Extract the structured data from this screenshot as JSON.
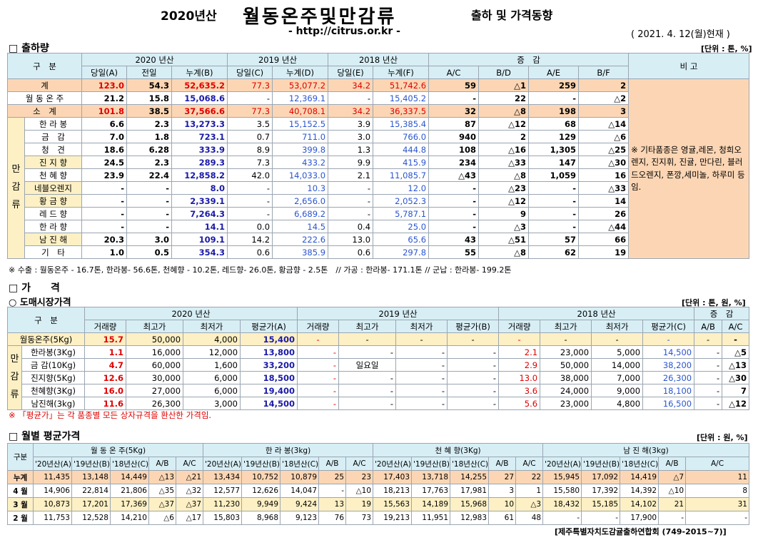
{
  "header": {
    "year": "2020년산",
    "title": "월동온주및만감류",
    "subtitle": "출하 및 가격동향",
    "url": "- http://citrus.or.kr -",
    "date": "( 2021. 4. 12(월)현재 )"
  },
  "sec1": {
    "title": "□ 출하량",
    "unit": "[단위 : 톤, %]"
  },
  "t1": {
    "h_gubun": "구　분",
    "h_2020": "2020 년산",
    "h_2019": "2019 년산",
    "h_2018": "2018 년산",
    "h_zg": "증　감",
    "h_bigo": "비 고",
    "sub": [
      "당일(A)",
      "전일",
      "누계(B)",
      "당일(C)",
      "누계(D)",
      "당일(E)",
      "누계(F)",
      "A/C",
      "B/D",
      "A/E",
      "B/F"
    ],
    "cat": "만 감 류",
    "note": "※ 기타품종은 영귤,레몬, 청희오렌지, 진지휘, 진귤, 만다린, 블러드오렌지, 폰깡,세미놀, 하루미 등 임.",
    "rows": [
      {
        "label": "계",
        "v": [
          "123.0",
          "54.3",
          "52,635.2",
          "77.3",
          "53,077.2",
          "34.2",
          "51,742.6",
          "59",
          "△1",
          "259",
          "2"
        ]
      },
      {
        "label": "월 동 온 주",
        "v": [
          "21.2",
          "15.8",
          "15,068.6",
          "-",
          "12,369.1",
          "-",
          "15,405.2",
          "-",
          "22",
          "-",
          "△2"
        ]
      },
      {
        "label": "소　계",
        "v": [
          "101.8",
          "38.5",
          "37,566.6",
          "77.3",
          "40,708.1",
          "34.2",
          "36,337.5",
          "32",
          "△8",
          "198",
          "3"
        ]
      },
      {
        "label": "한 라 봉",
        "v": [
          "6.6",
          "2.3",
          "13,273.3",
          "3.5",
          "15,152.5",
          "3.9",
          "15,385.4",
          "87",
          "△12",
          "68",
          "△14"
        ]
      },
      {
        "label": "금　감",
        "v": [
          "7.0",
          "1.8",
          "723.1",
          "0.7",
          "711.0",
          "3.0",
          "766.0",
          "940",
          "2",
          "129",
          "△6"
        ]
      },
      {
        "label": "청　견",
        "v": [
          "18.6",
          "6.28",
          "333.9",
          "8.9",
          "399.8",
          "1.3",
          "444.8",
          "108",
          "△16",
          "1,305",
          "△25"
        ]
      },
      {
        "label": "진 지 향",
        "v": [
          "24.5",
          "2.3",
          "289.3",
          "7.3",
          "433.2",
          "9.9",
          "415.9",
          "234",
          "△33",
          "147",
          "△30"
        ]
      },
      {
        "label": "천 혜 향",
        "v": [
          "23.9",
          "22.4",
          "12,858.2",
          "42.0",
          "14,033.0",
          "2.1",
          "11,085.7",
          "△43",
          "△8",
          "1,059",
          "16"
        ]
      },
      {
        "label": "네블오렌지",
        "v": [
          "-",
          "-",
          "8.0",
          "-",
          "10.3",
          "-",
          "12.0",
          "-",
          "△23",
          "-",
          "△33"
        ]
      },
      {
        "label": "황 금 향",
        "v": [
          "-",
          "-",
          "2,339.1",
          "-",
          "2,656.0",
          "-",
          "2,052.3",
          "-",
          "△12",
          "-",
          "14"
        ]
      },
      {
        "label": "레 드 향",
        "v": [
          "-",
          "-",
          "7,264.3",
          "-",
          "6,689.2",
          "-",
          "5,787.1",
          "-",
          "9",
          "-",
          "26"
        ]
      },
      {
        "label": "한 라 향",
        "v": [
          "-",
          "-",
          "14.1",
          "0.0",
          "14.5",
          "0.4",
          "25.0",
          "-",
          "△3",
          "-",
          "△44"
        ]
      },
      {
        "label": "남 진 해",
        "v": [
          "20.3",
          "3.0",
          "109.1",
          "14.2",
          "222.6",
          "13.0",
          "65.6",
          "43",
          "△51",
          "57",
          "66"
        ]
      },
      {
        "label": "기　타",
        "v": [
          "1.0",
          "0.5",
          "354.3",
          "0.6",
          "385.9",
          "0.6",
          "297.8",
          "55",
          "△8",
          "62",
          "19"
        ]
      }
    ]
  },
  "note1": "※ 수출 : 월동온주 - 16.7톤, 한라봉- 56.6톤, 천혜향 - 10.2톤, 레드향- 26.0톤, 황금향 - 2.5톤　// 가공 : 한라봉- 171.1톤 // 군납 : 한라봉- 199.2톤",
  "sec2": {
    "title": "□ 가　　격",
    "sub": "○ 도매시장가격",
    "unit": "[단위 : 톤, 원, %]"
  },
  "t2": {
    "h_gubun": "구　분",
    "h_2020": "2020 년산",
    "h_2019": "2019 년산",
    "h_2018": "2018 년산",
    "h_zg": "증　감",
    "sub": [
      "거래량",
      "최고가",
      "최저가",
      "평균가(A)",
      "거래량",
      "최고가",
      "최저가",
      "평균가(B)",
      "거래량",
      "최고가",
      "최저가",
      "평균가(C)",
      "A/B",
      "A/C"
    ],
    "cat": "만 감 류",
    "rows": [
      {
        "label": "월동온주(5Kg)",
        "v": [
          "15.7",
          "50,000",
          "4,000",
          "15,400",
          "-",
          "-",
          "-",
          "-",
          "-",
          "-",
          "-",
          "-",
          "-",
          "-"
        ]
      },
      {
        "label": "한라봉(3Kg)",
        "v": [
          "1.1",
          "16,000",
          "12,000",
          "13,800",
          "-",
          "-",
          "-",
          "-",
          "2.1",
          "23,000",
          "5,000",
          "14,500",
          "-",
          "△5"
        ]
      },
      {
        "label": "금 감(10Kg)",
        "v": [
          "4.7",
          "60,000",
          "1,600",
          "33,200",
          "-",
          "일요일",
          "-",
          "-",
          "2.9",
          "50,000",
          "14,000",
          "38,200",
          "-",
          "△13"
        ]
      },
      {
        "label": "진지향(5Kg)",
        "v": [
          "12.6",
          "30,000",
          "6,000",
          "18,500",
          "-",
          "-",
          "-",
          "-",
          "13.0",
          "38,000",
          "7,000",
          "26,300",
          "-",
          "△30"
        ]
      },
      {
        "label": "천혜향(3Kg)",
        "v": [
          "16.0",
          "27,000",
          "6,000",
          "19,400",
          "-",
          "-",
          "-",
          "-",
          "3.6",
          "24,000",
          "9,000",
          "18,100",
          "-",
          "7"
        ]
      },
      {
        "label": "남진해(3kg)",
        "v": [
          "11.6",
          "26,300",
          "3,000",
          "14,500",
          "-",
          "-",
          "-",
          "-",
          "5.6",
          "23,000",
          "4,800",
          "16,500",
          "-",
          "△12"
        ]
      }
    ]
  },
  "note2": "※ 「평균가」는 각 품종별 모든 상자규격을 환산한 가격임.",
  "sec3": {
    "title": "□ 월별 평균가격",
    "unit": "[단위 : 원, %]"
  },
  "t3": {
    "h_gubun": "구분",
    "groups": [
      "월 동 온 주(5Kg)",
      "한 라 봉(3kg)",
      "천 혜 향(3Kg)",
      "남 진 해(3kg)"
    ],
    "sub": [
      "'20년산(A)",
      "'19년산(B)",
      "'18년산(C)",
      "A/B",
      "A/C"
    ],
    "rows": [
      {
        "label": "누계",
        "v": [
          "11,435",
          "13,148",
          "14,449",
          "△13",
          "△21",
          "13,434",
          "10,752",
          "10,879",
          "25",
          "23",
          "17,403",
          "13,718",
          "14,255",
          "27",
          "22",
          "15,945",
          "17,092",
          "14,419",
          "△7",
          "11"
        ]
      },
      {
        "label": "4 월",
        "v": [
          "14,906",
          "22,814",
          "21,806",
          "△35",
          "△32",
          "12,577",
          "12,626",
          "14,047",
          "-",
          "△10",
          "18,213",
          "17,763",
          "17,981",
          "3",
          "1",
          "15,580",
          "17,392",
          "14,392",
          "△10",
          "8"
        ]
      },
      {
        "label": "3 월",
        "v": [
          "10,873",
          "17,201",
          "17,369",
          "△37",
          "△37",
          "11,230",
          "9,949",
          "9,424",
          "13",
          "19",
          "15,563",
          "14,189",
          "15,968",
          "10",
          "△3",
          "18,432",
          "15,185",
          "14,102",
          "21",
          "31"
        ]
      },
      {
        "label": "2 월",
        "v": [
          "11,753",
          "12,528",
          "14,210",
          "△6",
          "△17",
          "15,803",
          "8,968",
          "9,123",
          "76",
          "73",
          "19,213",
          "11,951",
          "12,983",
          "61",
          "48",
          "-",
          "-",
          "17,900",
          "-",
          "-"
        ]
      }
    ]
  },
  "footer": "[제주특별자치도감귤출하연합회 (749-2015~7)]"
}
